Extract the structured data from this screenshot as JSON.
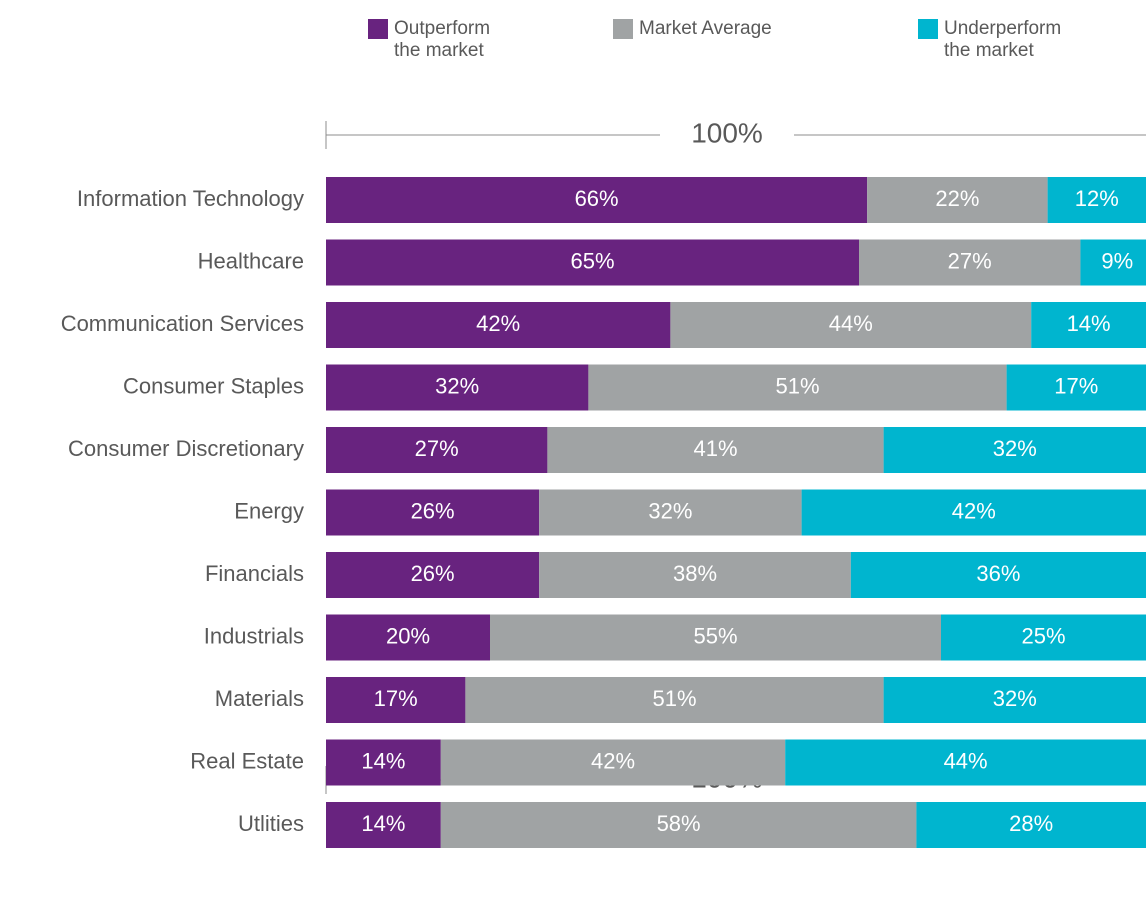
{
  "chart_data": {
    "type": "stacked_barh",
    "categories": [
      "Information Technology",
      "Healthcare",
      "Communication Services",
      "Consumer Staples",
      "Consumer Discretionary",
      "Energy",
      "Financials",
      "Industrials",
      "Materials",
      "Real Estate",
      "Utlities"
    ],
    "series": [
      {
        "name": "Outperform the market",
        "color": "#68237f",
        "values": [
          66,
          65,
          42,
          32,
          27,
          26,
          26,
          20,
          17,
          14,
          14
        ],
        "value_labels": [
          "66%",
          "65%",
          "42%",
          "32%",
          "27%",
          "26%",
          "26%",
          "20%",
          "17%",
          "14%",
          "14%"
        ]
      },
      {
        "name": "Market Average",
        "color": "#a0a3a4",
        "values": [
          22,
          27,
          44,
          51,
          41,
          32,
          38,
          55,
          51,
          42,
          58
        ],
        "value_labels": [
          "22%",
          "27%",
          "44%",
          "51%",
          "41%",
          "32%",
          "38%",
          "55%",
          "51%",
          "42%",
          "58%"
        ]
      },
      {
        "name": "Underperform the market",
        "color": "#00b5cf",
        "values": [
          12,
          9,
          14,
          17,
          32,
          42,
          36,
          25,
          32,
          44,
          28
        ],
        "value_labels": [
          "12%",
          "9%",
          "14%",
          "17%",
          "32%",
          "42%",
          "36%",
          "25%",
          "32%",
          "44%",
          "28%"
        ]
      }
    ],
    "xlim": [
      0,
      100
    ],
    "annotations": [
      "100%",
      "100%"
    ]
  }
}
